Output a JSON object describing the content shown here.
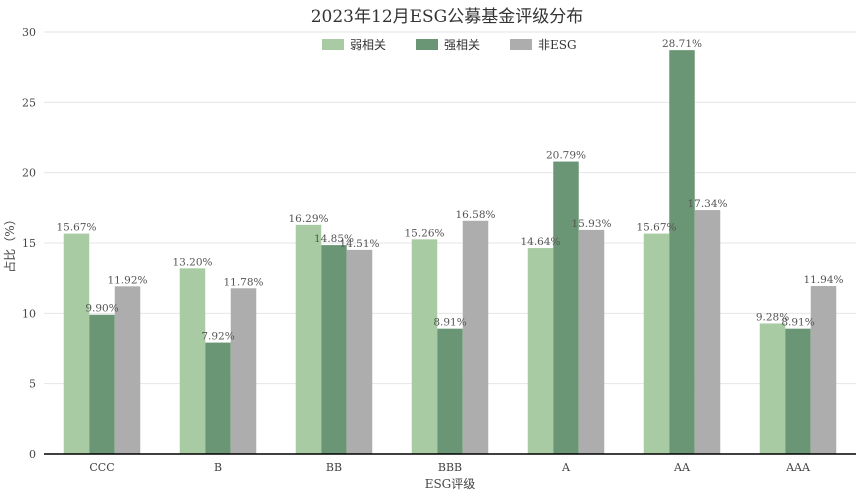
{
  "chart_data": {
    "type": "bar",
    "title": "2023年12月ESG公募基金评级分布",
    "xlabel": "ESG评级",
    "ylabel": "占比（%）",
    "ylim": [
      0,
      30
    ],
    "yticks": [
      0,
      5,
      10,
      15,
      20,
      25,
      30
    ],
    "categories": [
      "CCC",
      "B",
      "BB",
      "BBB",
      "A",
      "AA",
      "AAA"
    ],
    "series": [
      {
        "name": "弱相关",
        "color": "#a9cba3",
        "values": [
          15.67,
          13.2,
          16.29,
          15.26,
          14.64,
          15.67,
          9.28
        ],
        "labels": [
          "15.67%",
          "13.20%",
          "16.29%",
          "15.26%",
          "14.64%",
          "15.67%",
          "9.28%"
        ]
      },
      {
        "name": "强相关",
        "color": "#6b9675",
        "values": [
          9.9,
          7.92,
          14.85,
          8.91,
          20.79,
          28.71,
          8.91
        ],
        "labels": [
          "9.90%",
          "7.92%",
          "14.85%",
          "8.91%",
          "20.79%",
          "28.71%",
          "8.91%"
        ]
      },
      {
        "name": "非ESG",
        "color": "#adadad",
        "values": [
          11.92,
          11.78,
          14.51,
          16.58,
          15.93,
          17.34,
          11.94
        ],
        "labels": [
          "11.92%",
          "11.78%",
          "14.51%",
          "16.58%",
          "15.93%",
          "17.34%",
          "11.94%"
        ]
      }
    ],
    "legend_position": "top-center",
    "grid": true
  }
}
